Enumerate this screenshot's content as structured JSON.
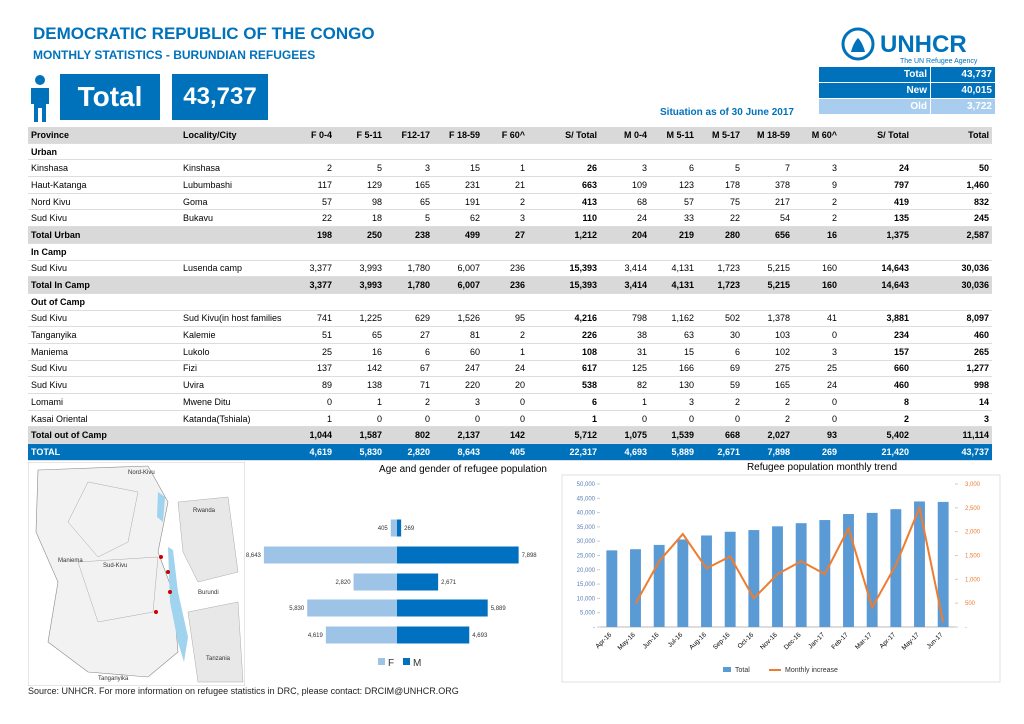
{
  "header": {
    "title": "DEMOCRATIC REPUBLIC OF THE CONGO",
    "subtitle": "MONTHLY STATISTICS - BURUNDIAN REFUGEES",
    "total_label": "Total",
    "total_value": "43,737"
  },
  "logo": {
    "name": "UNHCR",
    "tagline": "The UN Refugee Agency"
  },
  "summary": {
    "rows": [
      [
        "Total",
        "43,737"
      ],
      [
        "New",
        "40,015"
      ],
      [
        "Old",
        "3,722"
      ]
    ]
  },
  "situation": "Situation as of 30 June 2017",
  "table": {
    "headers": [
      "Province",
      "Locality/City",
      "F 0-4",
      "F 5-11",
      "F12-17",
      "F 18-59",
      "F 60^",
      "S/ Total",
      "M 0-4",
      "M 5-11",
      "M 5-17",
      "M 18-59",
      "M 60^",
      "S/ Total",
      "Total"
    ],
    "groups": [
      {
        "name": "Urban",
        "rows": [
          [
            "Kinshasa",
            "Kinshasa",
            "2",
            "5",
            "3",
            "15",
            "1",
            "26",
            "3",
            "6",
            "5",
            "7",
            "3",
            "24",
            "50"
          ],
          [
            "Haut-Katanga",
            "Lubumbashi",
            "117",
            "129",
            "165",
            "231",
            "21",
            "663",
            "109",
            "123",
            "178",
            "378",
            "9",
            "797",
            "1,460"
          ],
          [
            "Nord Kivu",
            "Goma",
            "57",
            "98",
            "65",
            "191",
            "2",
            "413",
            "68",
            "57",
            "75",
            "217",
            "2",
            "419",
            "832"
          ],
          [
            "Sud Kivu",
            "Bukavu",
            "22",
            "18",
            "5",
            "62",
            "3",
            "110",
            "24",
            "33",
            "22",
            "54",
            "2",
            "135",
            "245"
          ]
        ],
        "total": [
          "Total Urban",
          "198",
          "250",
          "238",
          "499",
          "27",
          "1,212",
          "204",
          "219",
          "280",
          "656",
          "16",
          "1,375",
          "2,587"
        ]
      },
      {
        "name": "In Camp",
        "rows": [
          [
            "Sud Kivu",
            "Lusenda camp",
            "3,377",
            "3,993",
            "1,780",
            "6,007",
            "236",
            "15,393",
            "3,414",
            "4,131",
            "1,723",
            "5,215",
            "160",
            "14,643",
            "30,036"
          ]
        ],
        "total": [
          "Total In Camp",
          "3,377",
          "3,993",
          "1,780",
          "6,007",
          "236",
          "15,393",
          "3,414",
          "4,131",
          "1,723",
          "5,215",
          "160",
          "14,643",
          "30,036"
        ]
      },
      {
        "name": "Out of Camp",
        "rows": [
          [
            "Sud Kivu",
            "Sud Kivu(in host families",
            "741",
            "1,225",
            "629",
            "1,526",
            "95",
            "4,216",
            "798",
            "1,162",
            "502",
            "1,378",
            "41",
            "3,881",
            "8,097"
          ],
          [
            "Tanganyika",
            "Kalemie",
            "51",
            "65",
            "27",
            "81",
            "2",
            "226",
            "38",
            "63",
            "30",
            "103",
            "0",
            "234",
            "460"
          ],
          [
            "Maniema",
            "Lukolo",
            "25",
            "16",
            "6",
            "60",
            "1",
            "108",
            "31",
            "15",
            "6",
            "102",
            "3",
            "157",
            "265"
          ],
          [
            "Sud Kivu",
            "Fizi",
            "137",
            "142",
            "67",
            "247",
            "24",
            "617",
            "125",
            "166",
            "69",
            "275",
            "25",
            "660",
            "1,277"
          ],
          [
            "Sud Kivu",
            "Uvira",
            "89",
            "138",
            "71",
            "220",
            "20",
            "538",
            "82",
            "130",
            "59",
            "165",
            "24",
            "460",
            "998"
          ],
          [
            "Lomami",
            "Mwene Ditu",
            "0",
            "1",
            "2",
            "3",
            "0",
            "6",
            "1",
            "3",
            "2",
            "2",
            "0",
            "8",
            "14"
          ],
          [
            "Kasai Oriental",
            "Katanda(Tshiala)",
            "1",
            "0",
            "0",
            "0",
            "0",
            "1",
            "0",
            "0",
            "0",
            "2",
            "0",
            "2",
            "3"
          ]
        ],
        "total": [
          "Total  out of Camp",
          "1,044",
          "1,587",
          "802",
          "2,137",
          "142",
          "5,712",
          "1,075",
          "1,539",
          "668",
          "2,027",
          "93",
          "5,402",
          "11,114"
        ]
      }
    ],
    "total": [
      "TOTAL",
      "4,619",
      "5,830",
      "2,820",
      "8,643",
      "405",
      "22,317",
      "4,693",
      "5,889",
      "2,671",
      "7,898",
      "269",
      "21,420",
      "43,737"
    ]
  },
  "chart_data": [
    {
      "type": "pyramid",
      "title": "Age and gender of refugee population",
      "categories": [
        null,
        null,
        null,
        null,
        null
      ],
      "series": [
        {
          "name": "F",
          "color": "#9dc3e6",
          "values": [
            405,
            8643,
            2820,
            5830,
            4619
          ],
          "value_labels": [
            "405",
            "8,643",
            "2,820",
            "5,830",
            "4,619"
          ]
        },
        {
          "name": "M",
          "color": "#0070c0",
          "values": [
            269,
            7898,
            2671,
            5889,
            4693
          ],
          "value_labels": [
            "269",
            "7,898",
            "2,671",
            "5,889",
            "4,693"
          ]
        }
      ]
    },
    {
      "type": "bar-line",
      "title": "Refugee population monthly trend",
      "categories": [
        "Apr-16",
        "May-16",
        "Jun-16",
        "Jul-16",
        "Aug-16",
        "Sep-16",
        "Oct-16",
        "Nov-16",
        "Dec-16",
        "Jan-17",
        "Feb-17",
        "Mar-17",
        "Apr-17",
        "May-17",
        "Jun-17"
      ],
      "series": [
        {
          "name": "Total",
          "type": "bar",
          "color": "#5b9bd5",
          "values": [
            26800,
            27200,
            28700,
            30600,
            32000,
            33300,
            33900,
            35200,
            36300,
            37400,
            39500,
            39900,
            41200,
            43900,
            43737
          ]
        },
        {
          "name": "Monthly increase",
          "type": "line",
          "axis": "y2",
          "color": "#ed7d31",
          "values": [
            null,
            490,
            1380,
            1950,
            1230,
            1480,
            600,
            1110,
            1380,
            1110,
            2070,
            410,
            1300,
            2500,
            100
          ]
        }
      ],
      "ylim": [
        0,
        50000
      ],
      "yticks": [
        {
          "value": 0,
          "label": "-"
        },
        {
          "value": 5000,
          "label": "5,000"
        },
        {
          "value": 10000,
          "label": "10,000"
        },
        {
          "value": 15000,
          "label": "15,000"
        },
        {
          "value": 20000,
          "label": "20,000"
        },
        {
          "value": 25000,
          "label": "25,000"
        },
        {
          "value": 30000,
          "label": "30,000"
        },
        {
          "value": 35000,
          "label": "35,000"
        },
        {
          "value": 40000,
          "label": "40,000"
        },
        {
          "value": 45000,
          "label": "45,000"
        },
        {
          "value": 50000,
          "label": "50,000"
        }
      ],
      "y2lim": [
        0,
        3000
      ],
      "y2ticks": [
        {
          "value": 0,
          "label": "-"
        },
        500,
        {
          "value": 1000,
          "label": "1,000"
        },
        {
          "value": 1500,
          "label": "1,500"
        },
        {
          "value": 2000,
          "label": "2,000"
        },
        {
          "value": 2500,
          "label": "2,500"
        },
        {
          "value": 3000,
          "label": "3,000"
        }
      ],
      "grid": false
    }
  ],
  "map": {
    "labels": [
      "Nord-Kivu",
      "Rwanda",
      "Sud-Kivu",
      "Burundi",
      "Maniema",
      "Tanzania",
      "Tanganyika"
    ]
  },
  "footer": "Source: UNHCR. For more information on refugee statistics in DRC, please contact: DRCIM@UNHCR.ORG"
}
